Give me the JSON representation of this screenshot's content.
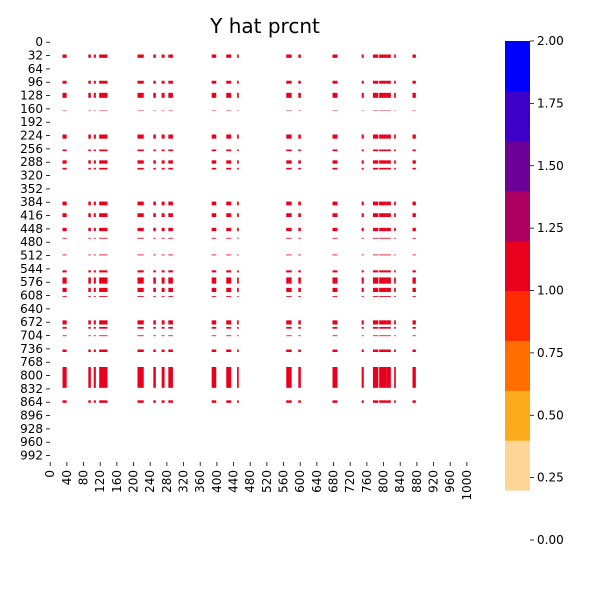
{
  "chart_data": {
    "type": "heatmap",
    "title": "Y hat prcnt",
    "xlabel": "",
    "ylabel": "",
    "xlim": [
      0,
      1008
    ],
    "ylim": [
      0,
      1008
    ],
    "x_ticks": [
      "0",
      "40",
      "80",
      "120",
      "160",
      "200",
      "240",
      "280",
      "320",
      "360",
      "400",
      "440",
      "480",
      "520",
      "560",
      "600",
      "640",
      "680",
      "720",
      "760",
      "800",
      "840",
      "880",
      "920",
      "960",
      "1000"
    ],
    "y_ticks": [
      "0",
      "32",
      "64",
      "96",
      "128",
      "160",
      "192",
      "224",
      "256",
      "288",
      "320",
      "352",
      "384",
      "416",
      "448",
      "480",
      "512",
      "544",
      "576",
      "608",
      "640",
      "672",
      "704",
      "736",
      "768",
      "800",
      "832",
      "864",
      "896",
      "928",
      "960",
      "992"
    ],
    "value_range": [
      0,
      2
    ],
    "cell_value": 1.0,
    "cell_color": "#e8001c",
    "background_color": "#ffffff",
    "row_bands": [
      [
        30,
        38
      ],
      [
        93,
        100
      ],
      [
        122,
        134
      ],
      [
        164,
        165
      ],
      [
        222,
        232
      ],
      [
        258,
        262
      ],
      [
        284,
        292
      ],
      [
        302,
        306
      ],
      [
        383,
        392
      ],
      [
        411,
        420
      ],
      [
        446,
        454
      ],
      [
        470,
        472
      ],
      [
        510,
        512
      ],
      [
        548,
        553
      ],
      [
        565,
        580
      ],
      [
        590,
        600
      ],
      [
        610,
        612
      ],
      [
        668,
        678
      ],
      [
        684,
        688
      ],
      [
        704,
        706
      ],
      [
        738,
        744
      ],
      [
        780,
        830
      ],
      [
        860,
        866
      ]
    ],
    "col_bands": [
      [
        30,
        40
      ],
      [
        92,
        98
      ],
      [
        105,
        110
      ],
      [
        118,
        138
      ],
      [
        210,
        225
      ],
      [
        248,
        254
      ],
      [
        268,
        275
      ],
      [
        284,
        295
      ],
      [
        388,
        399
      ],
      [
        423,
        435
      ],
      [
        449,
        453
      ],
      [
        567,
        580
      ],
      [
        596,
        602
      ],
      [
        678,
        690
      ],
      [
        748,
        753
      ],
      [
        775,
        788
      ],
      [
        790,
        808
      ],
      [
        808,
        818
      ],
      [
        826,
        830
      ],
      [
        870,
        878
      ]
    ],
    "colorbar": {
      "ticks": [
        "0.00",
        "0.25",
        "0.50",
        "0.75",
        "1.00",
        "1.25",
        "1.50",
        "1.75",
        "2.00"
      ],
      "colors": [
        "#ffffff",
        "#fdd596",
        "#fcab1d",
        "#ff6e00",
        "#fe2a00",
        "#e8001c",
        "#ad0062",
        "#6c0096",
        "#3c00c8",
        "#0000ff"
      ]
    }
  }
}
